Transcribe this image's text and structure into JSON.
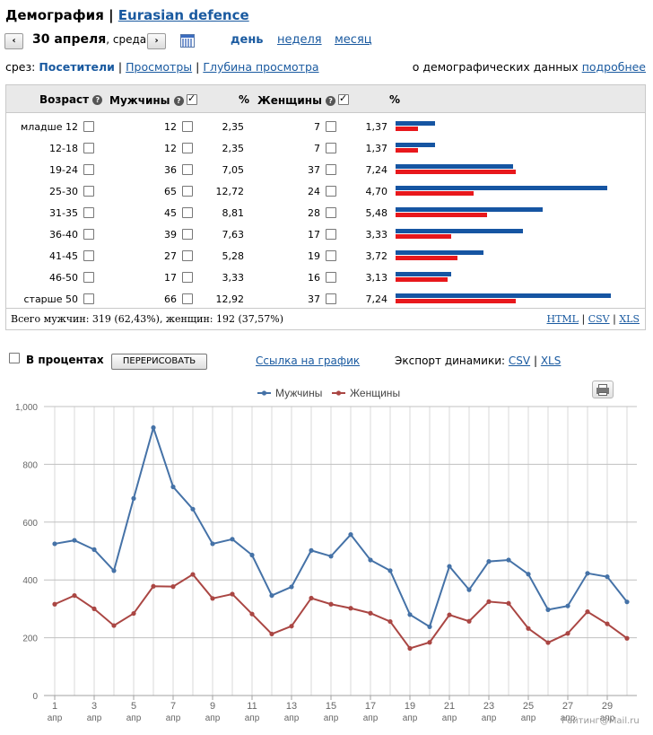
{
  "header": {
    "title": "Демография",
    "separator": "|",
    "site": "Eurasian defence"
  },
  "datebar": {
    "prev_icon": "‹",
    "next_icon": "›",
    "date": "30 апреля",
    "weekday": ", среда",
    "calendar_icon": "calendar-icon",
    "periods": {
      "day": "день",
      "week": "неделя",
      "month": "месяц"
    }
  },
  "slice": {
    "label": "срез:",
    "visitors": "Посетители",
    "views": "Просмотры",
    "depth": "Глубина просмотра",
    "sep": "|",
    "about_text": "о демографических данных",
    "about_link": "подробнее"
  },
  "table": {
    "headers": {
      "age": "Возраст",
      "men": "Мужчины",
      "pct1": "%",
      "women": "Женщины",
      "pct2": "%"
    },
    "help_icon": "?",
    "rows": [
      {
        "age": "младше 12",
        "men": "12",
        "men_pct": "2,35",
        "women": "7",
        "women_pct": "1,37"
      },
      {
        "age": "12-18",
        "men": "12",
        "men_pct": "2,35",
        "women": "7",
        "women_pct": "1,37"
      },
      {
        "age": "19-24",
        "men": "36",
        "men_pct": "7,05",
        "women": "37",
        "women_pct": "7,24"
      },
      {
        "age": "25-30",
        "men": "65",
        "men_pct": "12,72",
        "women": "24",
        "women_pct": "4,70"
      },
      {
        "age": "31-35",
        "men": "45",
        "men_pct": "8,81",
        "women": "28",
        "women_pct": "5,48"
      },
      {
        "age": "36-40",
        "men": "39",
        "men_pct": "7,63",
        "women": "17",
        "women_pct": "3,33"
      },
      {
        "age": "41-45",
        "men": "27",
        "men_pct": "5,28",
        "women": "19",
        "women_pct": "3,72"
      },
      {
        "age": "46-50",
        "men": "17",
        "men_pct": "3,33",
        "women": "16",
        "women_pct": "3,13"
      },
      {
        "age": "старше 50",
        "men": "66",
        "men_pct": "12,92",
        "women": "37",
        "women_pct": "7,24"
      }
    ],
    "summary": "Всего мужчин: 319 (62,43%), женщин: 192 (37,57%)",
    "export": {
      "html": "HTML",
      "csv": "CSV",
      "xls": "XLS",
      "sep": "|"
    },
    "colors": {
      "men": "#1655a2",
      "women": "#e8181c"
    }
  },
  "controls": {
    "percent_label": "В процентах",
    "redraw": "ПЕРЕРИСОВАТЬ",
    "graph_link": "Ссылка на график",
    "export_label": "Экспорт динамики:",
    "csv": "CSV",
    "xls": "XLS",
    "sep": "|",
    "print_icon": "print-icon"
  },
  "watermark": "Рейтинг@Mail.ru",
  "chart_data": {
    "type": "line",
    "x": [
      1,
      2,
      3,
      4,
      5,
      6,
      7,
      8,
      9,
      10,
      11,
      12,
      13,
      14,
      15,
      16,
      17,
      18,
      19,
      20,
      21,
      22,
      23,
      24,
      25,
      26,
      27,
      28,
      29,
      30
    ],
    "x_tick_labels": [
      "1",
      "3",
      "5",
      "7",
      "9",
      "11",
      "13",
      "15",
      "17",
      "19",
      "21",
      "23",
      "25",
      "27",
      "29"
    ],
    "x_tick_sublabel": "апр",
    "y_tick_labels": [
      "0",
      "200",
      "400",
      "600",
      "800",
      "1,000"
    ],
    "ylim": [
      0,
      1000
    ],
    "grid": true,
    "legend_position": "top",
    "series": [
      {
        "name": "Мужчины",
        "color": "#4572a7",
        "values": [
          525,
          537,
          505,
          432,
          682,
          927,
          722,
          645,
          525,
          541,
          486,
          346,
          376,
          502,
          482,
          557,
          469,
          432,
          280,
          238,
          447,
          366,
          464,
          469,
          420,
          297,
          310,
          423,
          411,
          324
        ]
      },
      {
        "name": "Женщины",
        "color": "#aa4643",
        "values": [
          316,
          346,
          300,
          242,
          284,
          378,
          377,
          419,
          336,
          351,
          282,
          213,
          240,
          337,
          316,
          302,
          285,
          256,
          163,
          184,
          279,
          257,
          325,
          319,
          232,
          183,
          215,
          290,
          248,
          198
        ]
      }
    ]
  }
}
